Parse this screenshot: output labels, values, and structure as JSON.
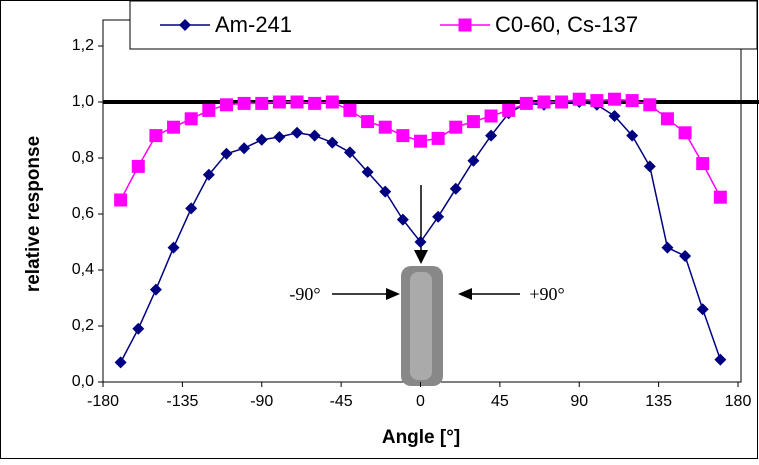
{
  "chart_data": {
    "type": "line",
    "x_label": "Angle [°]",
    "y_label": "relative response",
    "x": [
      -170,
      -160,
      -150,
      -140,
      -130,
      -120,
      -110,
      -100,
      -90,
      -80,
      -70,
      -60,
      -50,
      -40,
      -30,
      -20,
      -10,
      0,
      10,
      20,
      30,
      40,
      50,
      60,
      70,
      80,
      90,
      100,
      110,
      120,
      130,
      140,
      150,
      160,
      170
    ],
    "series": [
      {
        "name": "Am-241",
        "color": "#000080",
        "marker": "diamond",
        "values": [
          0.07,
          0.19,
          0.33,
          0.48,
          0.62,
          0.74,
          0.815,
          0.835,
          0.865,
          0.875,
          0.89,
          0.88,
          0.855,
          0.82,
          0.75,
          0.68,
          0.58,
          0.5,
          0.59,
          0.69,
          0.79,
          0.88,
          0.96,
          0.995,
          0.99,
          1.0,
          1.0,
          0.99,
          0.95,
          0.88,
          0.77,
          0.48,
          0.45,
          0.26,
          0.08
        ]
      },
      {
        "name": "C0-60, Cs-137",
        "color": "#ff00ff",
        "marker": "square",
        "values": [
          0.65,
          0.77,
          0.88,
          0.91,
          0.94,
          0.97,
          0.99,
          0.995,
          0.995,
          1.0,
          1.0,
          0.995,
          1.0,
          0.97,
          0.93,
          0.91,
          0.88,
          0.86,
          0.87,
          0.91,
          0.93,
          0.95,
          0.97,
          0.995,
          1.0,
          1.0,
          1.01,
          1.005,
          1.01,
          1.005,
          0.99,
          0.94,
          0.89,
          0.78,
          0.66
        ]
      }
    ],
    "reference_line": 1.0,
    "xlim": [
      -180,
      180
    ],
    "xticks": [
      -180,
      -135,
      -90,
      -45,
      0,
      45,
      90,
      135,
      180
    ],
    "ylim": [
      0,
      1.2
    ],
    "yticks": [
      {
        "value": 0,
        "label": "0,0"
      },
      {
        "value": 0.2,
        "label": "0,2"
      },
      {
        "value": 0.4,
        "label": "0,4"
      },
      {
        "value": 0.6,
        "label": "0,6"
      },
      {
        "value": 0.8,
        "label": "0,8"
      },
      {
        "value": 1.0,
        "label": "1,0"
      },
      {
        "value": 1.2,
        "label": "1,2"
      }
    ],
    "annotations": [
      "-90°",
      "+90°"
    ],
    "legend": "top"
  }
}
